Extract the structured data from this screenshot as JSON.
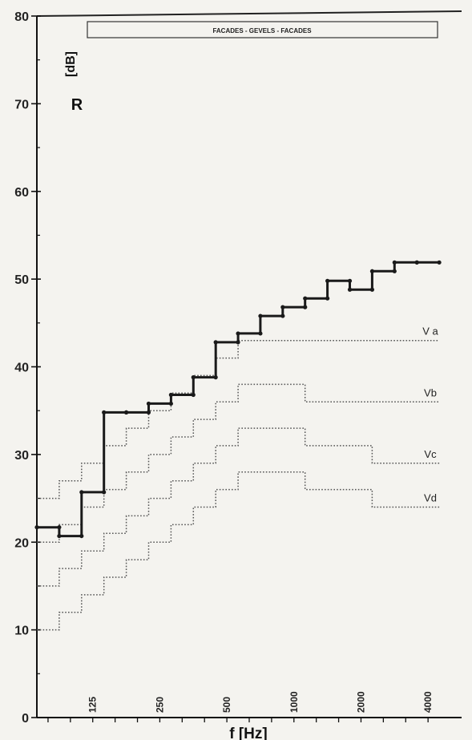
{
  "chart_data": {
    "type": "line",
    "title": "FACADES - GEVELS - FACADES",
    "ylabel_symbol": "R",
    "ylabel_unit": "[dB]",
    "xlabel": "f [Hz]",
    "ylim": [
      0,
      80
    ],
    "yticks": [
      0,
      10,
      20,
      30,
      40,
      50,
      60,
      70,
      80
    ],
    "x_scale": "third-octave bands, log",
    "xlim_bands": [
      -0.5,
      18.5
    ],
    "xtick_labels": [
      {
        "band": 2,
        "label": "125"
      },
      {
        "band": 5,
        "label": "250"
      },
      {
        "band": 8,
        "label": "500"
      },
      {
        "band": 11,
        "label": "1000"
      },
      {
        "band": 14,
        "label": "2000"
      },
      {
        "band": 17,
        "label": "4000"
      }
    ],
    "bands_hz": [
      100,
      125,
      160,
      200,
      250,
      315,
      400,
      500,
      630,
      800,
      1000,
      1250,
      1600,
      2000,
      2500,
      3150,
      4000,
      5000
    ],
    "measured": {
      "values": [
        21.7,
        20.7,
        25.7,
        34.8,
        34.8,
        35.8,
        36.8,
        38.8,
        42.8,
        43.8,
        45.8,
        46.8,
        47.8,
        49.8,
        48.8,
        50.9,
        51.9,
        51.9
      ],
      "color": "#1a1a1a"
    },
    "reference_curves": [
      {
        "name": "V a",
        "values": [
          25,
          27,
          29,
          31,
          33,
          35,
          37,
          39,
          41,
          43,
          43,
          43,
          43,
          43,
          43,
          43,
          43,
          43
        ]
      },
      {
        "name": "Vb",
        "values": [
          20,
          22,
          24,
          26,
          28,
          30,
          32,
          34,
          36,
          38,
          38,
          38,
          36,
          36,
          36,
          36,
          36,
          36
        ]
      },
      {
        "name": "Vc",
        "values": [
          15,
          17,
          19,
          21,
          23,
          25,
          27,
          29,
          31,
          33,
          33,
          33,
          31,
          31,
          31,
          29,
          29,
          29
        ]
      },
      {
        "name": "Vd",
        "values": [
          10,
          12,
          14,
          16,
          18,
          20,
          22,
          24,
          26,
          28,
          28,
          28,
          26,
          26,
          26,
          24,
          24,
          24
        ]
      }
    ],
    "reference_color": "#555555",
    "grid": false
  }
}
